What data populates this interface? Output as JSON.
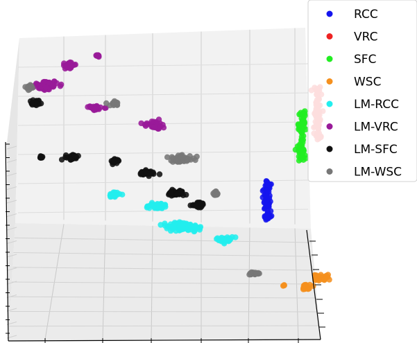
{
  "chart_data": {
    "type": "scatter",
    "projection": "3d",
    "grid": true,
    "legend_position": "top-right",
    "series": [
      {
        "name": "RCC",
        "color": "#1515ee",
        "clusters": [
          {
            "center": [
              0.64,
              0.1,
              0.05
            ],
            "spread": [
              0.02,
              0.02,
              0.22
            ],
            "count": 80
          }
        ]
      },
      {
        "name": "VRC",
        "color": "#ee2222",
        "clusters": [
          {
            "center": [
              0.95,
              0.55,
              0.72
            ],
            "spread": [
              0.02,
              0.03,
              0.3
            ],
            "count": 70
          }
        ]
      },
      {
        "name": "SFC",
        "color": "#22ee22",
        "clusters": [
          {
            "center": [
              0.85,
              0.4,
              0.56
            ],
            "spread": [
              0.02,
              0.03,
              0.28
            ],
            "count": 70
          }
        ]
      },
      {
        "name": "WSC",
        "color": "#f5901e",
        "clusters": [
          {
            "center": [
              0.88,
              -0.1,
              -0.8
            ],
            "spread": [
              0.03,
              0.02,
              0.03
            ],
            "count": 25
          },
          {
            "center": [
              0.97,
              -0.15,
              -0.65
            ],
            "spread": [
              0.04,
              0.02,
              0.03
            ],
            "count": 35
          },
          {
            "center": [
              0.74,
              -0.18,
              -0.72
            ],
            "spread": [
              0.005,
              0.005,
              0.005
            ],
            "count": 4
          }
        ]
      },
      {
        "name": "LM-RCC",
        "color": "#22eeee",
        "clusters": [
          {
            "center": [
              -0.3,
              -0.25,
              0.38
            ],
            "spread": [
              0.03,
              0.02,
              0.02
            ],
            "count": 25
          },
          {
            "center": [
              -0.05,
              -0.28,
              0.28
            ],
            "spread": [
              0.05,
              0.02,
              0.02
            ],
            "count": 40
          },
          {
            "center": [
              0.12,
              -0.3,
              0.05
            ],
            "spread": [
              0.1,
              0.03,
              0.03
            ],
            "count": 90
          },
          {
            "center": [
              0.38,
              -0.3,
              -0.1
            ],
            "spread": [
              0.05,
              0.02,
              0.02
            ],
            "count": 35
          }
        ]
      },
      {
        "name": "LM-VRC",
        "color": "#991a99",
        "clusters": [
          {
            "center": [
              -0.72,
              0.8,
              0.85
            ],
            "spread": [
              0.06,
              0.04,
              0.03
            ],
            "count": 70
          },
          {
            "center": [
              -0.58,
              0.9,
              1.0
            ],
            "spread": [
              0.03,
              0.02,
              0.03
            ],
            "count": 30
          },
          {
            "center": [
              -0.4,
              0.85,
              1.15
            ],
            "spread": [
              0.01,
              0.01,
              0.01
            ],
            "count": 10
          },
          {
            "center": [
              -0.42,
              0.65,
              0.7
            ],
            "spread": [
              0.04,
              0.02,
              0.02
            ],
            "count": 30
          },
          {
            "center": [
              -0.05,
              0.55,
              0.58
            ],
            "spread": [
              0.04,
              0.03,
              0.03
            ],
            "count": 40
          }
        ]
      },
      {
        "name": "LM-SFC",
        "color": "#111111",
        "clusters": [
          {
            "center": [
              -0.78,
              0.6,
              0.8
            ],
            "spread": [
              0.03,
              0.02,
              0.02
            ],
            "count": 20
          },
          {
            "center": [
              -0.75,
              0.3,
              0.4
            ],
            "spread": [
              0.01,
              0.01,
              0.01
            ],
            "count": 10
          },
          {
            "center": [
              -0.56,
              0.3,
              0.4
            ],
            "spread": [
              0.03,
              0.02,
              0.02
            ],
            "count": 30
          },
          {
            "center": [
              -0.3,
              0.3,
              0.35
            ],
            "spread": [
              0.02,
              0.02,
              0.02
            ],
            "count": 25
          },
          {
            "center": [
              -0.1,
              0.25,
              0.25
            ],
            "spread": [
              0.04,
              0.02,
              0.02
            ],
            "count": 40
          },
          {
            "center": [
              0.07,
              0.15,
              0.1
            ],
            "spread": [
              0.05,
              0.02,
              0.02
            ],
            "count": 45
          },
          {
            "center": [
              0.22,
              0.1,
              0.0
            ],
            "spread": [
              0.03,
              0.02,
              0.02
            ],
            "count": 30
          }
        ]
      },
      {
        "name": "LM-WSC",
        "color": "#777777",
        "clusters": [
          {
            "center": [
              -0.82,
              0.7,
              0.9
            ],
            "spread": [
              0.02,
              0.02,
              0.02
            ],
            "count": 20
          },
          {
            "center": [
              -0.3,
              0.65,
              0.75
            ],
            "spread": [
              0.02,
              0.02,
              0.02
            ],
            "count": 20
          },
          {
            "center": [
              0.1,
              0.4,
              0.3
            ],
            "spread": [
              0.07,
              0.02,
              0.03
            ],
            "count": 60
          },
          {
            "center": [
              0.32,
              0.2,
              0.05
            ],
            "spread": [
              0.02,
              0.02,
              0.02
            ],
            "count": 15
          },
          {
            "center": [
              0.56,
              -0.05,
              -0.68
            ],
            "spread": [
              0.03,
              0.01,
              0.01
            ],
            "count": 20
          }
        ]
      }
    ]
  }
}
